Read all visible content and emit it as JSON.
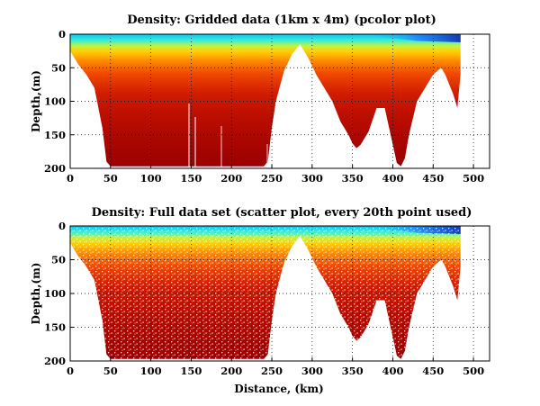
{
  "chart_data": [
    {
      "type": "heatmap",
      "title": "Density: Gridded data (1km x 4m) (pcolor plot)",
      "xlabel": "",
      "ylabel": "Depth,(m)",
      "xlim": [
        0,
        520
      ],
      "ylim": [
        200,
        0
      ],
      "xticks": [
        "0",
        "50",
        "100",
        "150",
        "200",
        "250",
        "300",
        "350",
        "400",
        "450",
        "500"
      ],
      "yticks": [
        "0",
        "50",
        "100",
        "150",
        "200"
      ],
      "grid": true,
      "colormap": "jet",
      "bottom_profile": {
        "distance_km": [
          0,
          10,
          20,
          30,
          40,
          45,
          50,
          60,
          100,
          150,
          200,
          240,
          245,
          250,
          255,
          265,
          275,
          285,
          295,
          305,
          315,
          325,
          335,
          345,
          350,
          355,
          360,
          370,
          380,
          390,
          400,
          405,
          410,
          415,
          420,
          430,
          440,
          450,
          460,
          465,
          470,
          475,
          480,
          484
        ],
        "max_depth_m": [
          25,
          45,
          60,
          80,
          140,
          190,
          197,
          197,
          197,
          197,
          197,
          197,
          190,
          140,
          100,
          55,
          30,
          15,
          35,
          60,
          80,
          100,
          130,
          150,
          163,
          170,
          165,
          145,
          110,
          110,
          165,
          192,
          197,
          185,
          150,
          100,
          80,
          60,
          50,
          60,
          75,
          90,
          110,
          60
        ]
      }
    },
    {
      "type": "scatter",
      "title": "Density: Full data set (scatter plot, every 20th point used)",
      "xlabel": "Distance, (km)",
      "ylabel": "Depth,(m)",
      "xlim": [
        0,
        520
      ],
      "ylim": [
        200,
        0
      ],
      "xticks": [
        "0",
        "50",
        "100",
        "150",
        "200",
        "250",
        "300",
        "350",
        "400",
        "450",
        "500"
      ],
      "yticks": [
        "0",
        "50",
        "100",
        "150",
        "200"
      ],
      "grid": true,
      "colormap": "jet",
      "sampling": "every 20th point"
    }
  ]
}
